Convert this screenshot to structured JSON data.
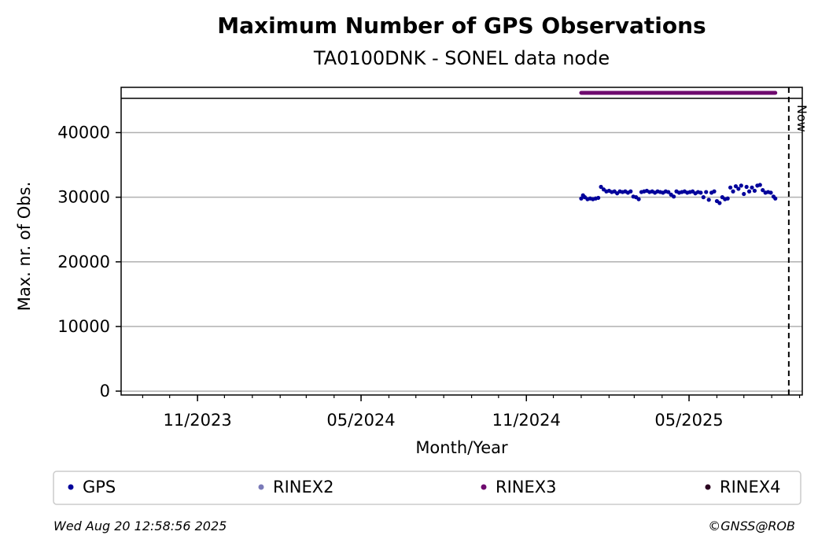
{
  "chart_data": {
    "type": "scatter",
    "title": "Maximum Number of GPS Observations",
    "subtitle": "TA0100DNK - SONEL data node",
    "xlabel": "Month/Year",
    "ylabel": "Max. nr. of Obs.",
    "x_ticks": [
      "11/2023",
      "05/2024",
      "11/2024",
      "05/2025"
    ],
    "x_tick_dates": [
      "2023-11-01",
      "2024-05-01",
      "2024-11-01",
      "2025-05-01"
    ],
    "xlim": [
      "2023-08-08",
      "2025-09-04"
    ],
    "y_ticks": [
      0,
      10000,
      20000,
      30000,
      40000
    ],
    "ylim": [
      -600,
      47000
    ],
    "grid": "horizontal",
    "now_label": "Now",
    "now_date": "2025-08-20",
    "series": [
      {
        "name": "GPS",
        "color": "#00009b",
        "points": [
          [
            "2025-01-01",
            29800
          ],
          [
            "2025-01-03",
            30300
          ],
          [
            "2025-01-05",
            30000
          ],
          [
            "2025-01-08",
            29700
          ],
          [
            "2025-01-11",
            29800
          ],
          [
            "2025-01-14",
            29700
          ],
          [
            "2025-01-17",
            29800
          ],
          [
            "2025-01-20",
            29900
          ],
          [
            "2025-01-23",
            31600
          ],
          [
            "2025-01-26",
            31200
          ],
          [
            "2025-01-29",
            30900
          ],
          [
            "2025-02-01",
            31000
          ],
          [
            "2025-02-04",
            30800
          ],
          [
            "2025-02-07",
            30900
          ],
          [
            "2025-02-10",
            30600
          ],
          [
            "2025-02-13",
            30900
          ],
          [
            "2025-02-16",
            30800
          ],
          [
            "2025-02-19",
            30900
          ],
          [
            "2025-02-22",
            30700
          ],
          [
            "2025-02-25",
            30900
          ],
          [
            "2025-02-28",
            30100
          ],
          [
            "2025-03-03",
            30000
          ],
          [
            "2025-03-06",
            29700
          ],
          [
            "2025-03-09",
            30800
          ],
          [
            "2025-03-12",
            30900
          ],
          [
            "2025-03-15",
            31000
          ],
          [
            "2025-03-18",
            30800
          ],
          [
            "2025-03-21",
            30900
          ],
          [
            "2025-03-24",
            30700
          ],
          [
            "2025-03-27",
            30900
          ],
          [
            "2025-03-30",
            30800
          ],
          [
            "2025-04-02",
            30700
          ],
          [
            "2025-04-05",
            30900
          ],
          [
            "2025-04-08",
            30800
          ],
          [
            "2025-04-11",
            30400
          ],
          [
            "2025-04-14",
            30100
          ],
          [
            "2025-04-17",
            30900
          ],
          [
            "2025-04-20",
            30700
          ],
          [
            "2025-04-23",
            30800
          ],
          [
            "2025-04-26",
            30900
          ],
          [
            "2025-04-29",
            30700
          ],
          [
            "2025-05-02",
            30800
          ],
          [
            "2025-05-05",
            30900
          ],
          [
            "2025-05-08",
            30600
          ],
          [
            "2025-05-11",
            30800
          ],
          [
            "2025-05-14",
            30700
          ],
          [
            "2025-05-17",
            30000
          ],
          [
            "2025-05-20",
            30800
          ],
          [
            "2025-05-23",
            29600
          ],
          [
            "2025-05-26",
            30700
          ],
          [
            "2025-05-29",
            30900
          ],
          [
            "2025-06-01",
            29400
          ],
          [
            "2025-06-04",
            29100
          ],
          [
            "2025-06-07",
            30000
          ],
          [
            "2025-06-10",
            29700
          ],
          [
            "2025-06-13",
            29800
          ],
          [
            "2025-06-16",
            31500
          ],
          [
            "2025-06-19",
            30900
          ],
          [
            "2025-06-22",
            31700
          ],
          [
            "2025-06-25",
            31300
          ],
          [
            "2025-06-28",
            31800
          ],
          [
            "2025-07-01",
            30500
          ],
          [
            "2025-07-04",
            31600
          ],
          [
            "2025-07-07",
            30900
          ],
          [
            "2025-07-10",
            31500
          ],
          [
            "2025-07-13",
            31000
          ],
          [
            "2025-07-16",
            31800
          ],
          [
            "2025-07-19",
            31900
          ],
          [
            "2025-07-22",
            31100
          ],
          [
            "2025-07-25",
            30700
          ],
          [
            "2025-07-28",
            30800
          ],
          [
            "2025-07-31",
            30700
          ],
          [
            "2025-08-03",
            30100
          ],
          [
            "2025-08-05",
            29800
          ]
        ]
      },
      {
        "name": "RINEX2",
        "color": "#7a7ab8",
        "points": []
      },
      {
        "name": "RINEX3",
        "color": "#6e0a6e",
        "availability_band": true,
        "range": [
          "2025-01-01",
          "2025-08-05"
        ]
      },
      {
        "name": "RINEX4",
        "color": "#2b0220",
        "points": []
      }
    ]
  },
  "footer": {
    "timestamp": "Wed Aug 20 12:58:56 2025",
    "credit": "©GNSS@ROB"
  }
}
